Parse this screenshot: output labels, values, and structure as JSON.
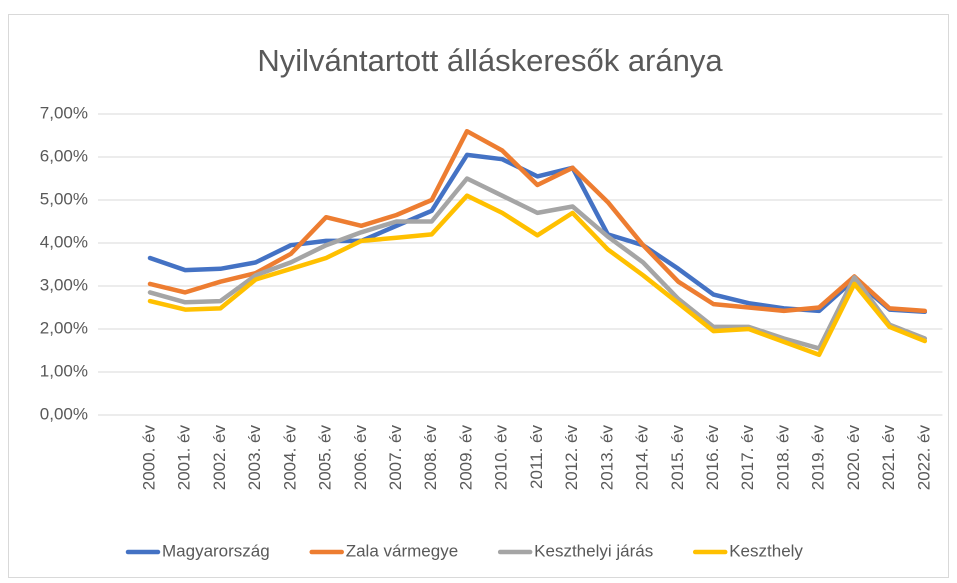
{
  "chart_data": {
    "type": "line",
    "title": "Nyilvántartott álláskeresők aránya",
    "categories": [
      "2000. év",
      "2001. év",
      "2002. év",
      "2003. év",
      "2004. év",
      "2005. év",
      "2006. év",
      "2007. év",
      "2008. év",
      "2009. év",
      "2010. év",
      "2011. év",
      "2012. év",
      "2013. év",
      "2014. év",
      "2015. év",
      "2016. év",
      "2017. év",
      "2018. év",
      "2019. év",
      "2020. év",
      "2021. év",
      "2022. év"
    ],
    "series": [
      {
        "name": "Magyarország",
        "color": "#4472c4",
        "values": [
          3.65,
          3.37,
          3.4,
          3.55,
          3.95,
          4.05,
          4.05,
          4.4,
          4.75,
          6.05,
          5.95,
          5.55,
          5.75,
          4.2,
          3.95,
          3.4,
          2.8,
          2.6,
          2.48,
          2.42,
          3.15,
          2.45,
          2.4
        ]
      },
      {
        "name": "Zala vármegye",
        "color": "#ed7d31",
        "values": [
          3.05,
          2.85,
          3.1,
          3.3,
          3.75,
          4.6,
          4.4,
          4.65,
          5.0,
          6.6,
          6.15,
          5.35,
          5.75,
          4.95,
          3.95,
          3.1,
          2.58,
          2.5,
          2.42,
          2.5,
          3.22,
          2.48,
          2.42
        ]
      },
      {
        "name": "Keszthelyi járás",
        "color": "#a5a5a5",
        "values": [
          2.85,
          2.62,
          2.65,
          3.25,
          3.55,
          3.95,
          4.25,
          4.5,
          4.5,
          5.5,
          5.1,
          4.7,
          4.85,
          4.15,
          3.55,
          2.7,
          2.05,
          2.05,
          1.78,
          1.55,
          3.2,
          2.1,
          1.78
        ]
      },
      {
        "name": "Keszthely",
        "color": "#ffc000",
        "values": [
          2.65,
          2.45,
          2.48,
          3.15,
          3.4,
          3.65,
          4.05,
          4.12,
          4.2,
          5.1,
          4.7,
          4.18,
          4.7,
          3.85,
          3.25,
          2.6,
          1.95,
          2.0,
          1.7,
          1.4,
          3.05,
          2.05,
          1.72
        ]
      }
    ],
    "ylim": [
      0,
      7
    ],
    "yticks": [
      {
        "value": 0,
        "label": "0,00%"
      },
      {
        "value": 1,
        "label": "1,00%"
      },
      {
        "value": 2,
        "label": "2,00%"
      },
      {
        "value": 3,
        "label": "3,00%"
      },
      {
        "value": 4,
        "label": "4,00%"
      },
      {
        "value": 5,
        "label": "5,00%"
      },
      {
        "value": 6,
        "label": "6,00%"
      },
      {
        "value": 7,
        "label": "7,00%"
      }
    ],
    "grid": true,
    "legend": "bottom"
  }
}
